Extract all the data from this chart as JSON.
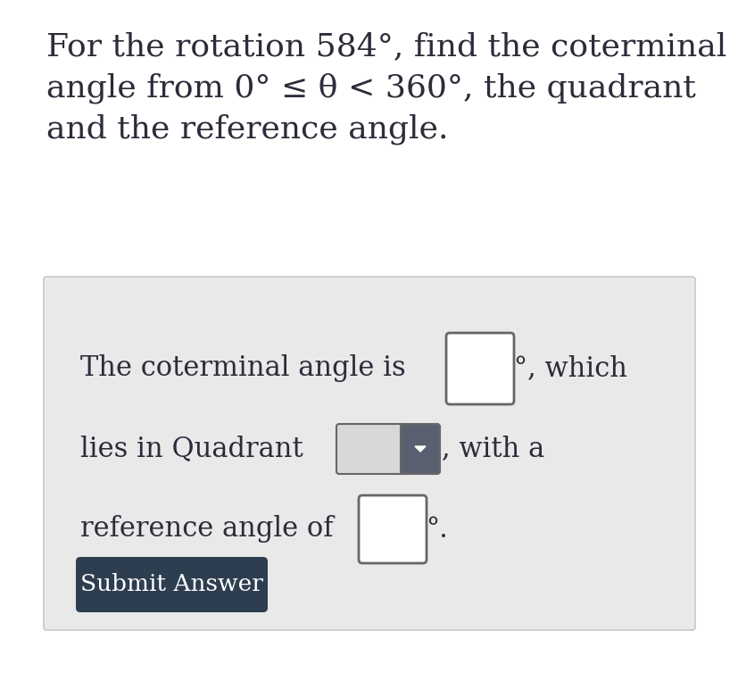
{
  "bg_color": "#ffffff",
  "panel_bg": "#e9e9ea",
  "panel_border": "#c8c8c8",
  "title_lines": [
    "For the rotation 584°, find the coterminal",
    "angle from 0° ≤ θ < 360°, the quadrant",
    "and the reference angle."
  ],
  "line1_prefix": "The coterminal angle is",
  "line1_suffix": "°, which",
  "line2_prefix": "lies in Quadrant",
  "line2_suffix": ", with a",
  "line3_prefix": "reference angle of",
  "line3_suffix": "°.",
  "button_text": "Submit Answer",
  "button_bg": "#2c3e50",
  "button_text_color": "#ffffff",
  "text_color": "#2c2c3a",
  "input_box_color": "#ffffff",
  "input_box_border": "#666666",
  "dropdown_bg_light": "#d8d8d8",
  "dropdown_bg_dark": "#5a6070",
  "dropdown_arrow_color": "#ffffff",
  "font_size_title": 26,
  "font_size_body": 22,
  "font_size_button": 19
}
